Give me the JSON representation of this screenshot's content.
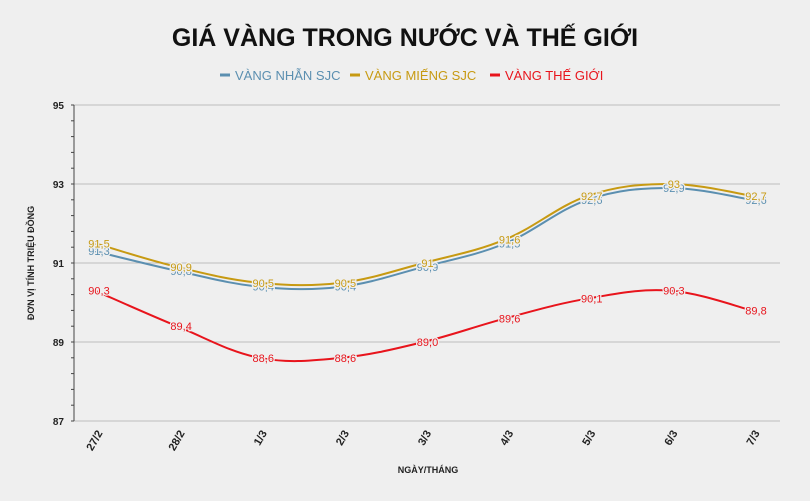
{
  "chart_data": {
    "type": "line",
    "title": "GIÁ VÀNG TRONG NƯỚC VÀ THẾ GIỚI",
    "xlabel": "NGÀY/THÁNG",
    "ylabel": "ĐƠN VỊ TÍNH TRIỆU ĐỒNG",
    "categories": [
      "27/2",
      "28/2",
      "1/3",
      "2/3",
      "3/3",
      "4/3",
      "5/3",
      "6/3",
      "7/3"
    ],
    "ylim": [
      87,
      95
    ],
    "yticks": [
      "87",
      "89",
      "91",
      "93",
      "95"
    ],
    "grid": true,
    "legend_position": "top",
    "series": [
      {
        "name": "VÀNG NHẪN SJC",
        "color": "#5b8fb0",
        "values": [
          91.3,
          90.8,
          90.4,
          90.4,
          90.9,
          91.5,
          92.6,
          92.9,
          92.6
        ],
        "labels": [
          "91,3",
          "90,8",
          "90,4",
          "90,4",
          "90,9",
          "91,5",
          "92,6",
          "92,9",
          "92,6"
        ]
      },
      {
        "name": "VÀNG MIẾNG SJC",
        "color": "#c79a12",
        "values": [
          91.5,
          90.9,
          90.5,
          90.5,
          91.0,
          91.6,
          92.7,
          93.0,
          92.7
        ],
        "labels": [
          "91,5",
          "90,9",
          "90,5",
          "90,5",
          "91",
          "91,6",
          "92,7",
          "93",
          "92,7"
        ]
      },
      {
        "name": "VÀNG THẾ GIỚI",
        "color": "#e8141c",
        "values": [
          90.3,
          89.4,
          88.6,
          88.6,
          89.0,
          89.6,
          90.1,
          90.3,
          89.8
        ],
        "labels": [
          "90,3",
          "89,4",
          "88,6",
          "88,6",
          "89,0",
          "89,6",
          "90,1",
          "90,3",
          "89,8"
        ]
      }
    ]
  }
}
